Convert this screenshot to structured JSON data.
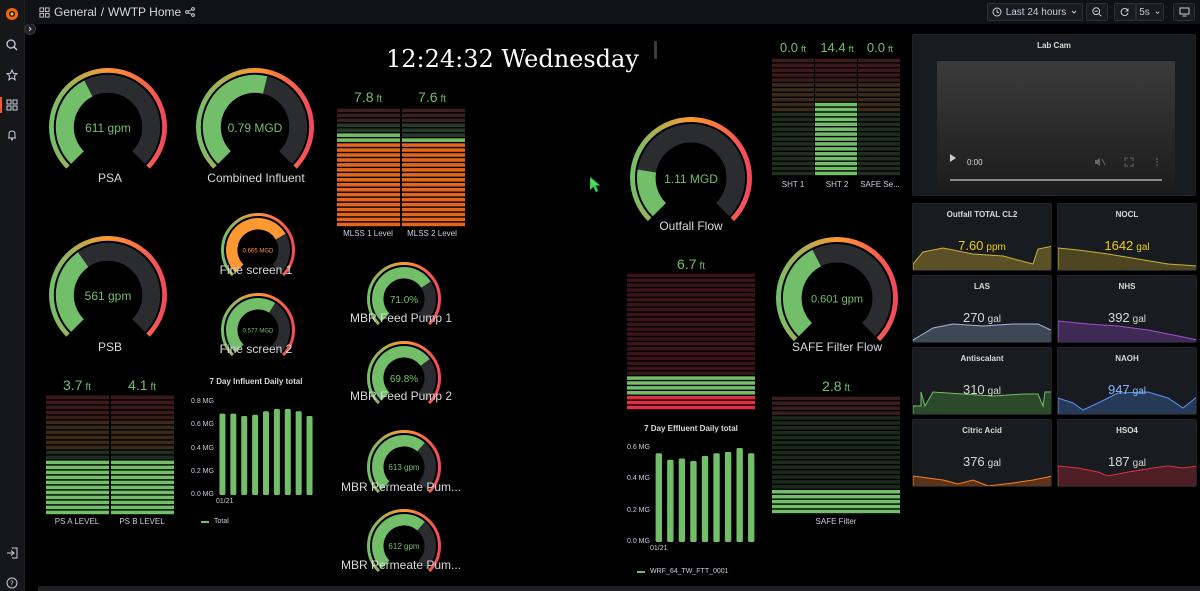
{
  "topbar": {
    "breadcrumb_folder": "General",
    "breadcrumb_sep": "/",
    "breadcrumb_title": "WWTP Home",
    "time_range": "Last 24 hours",
    "refresh_interval": "5s"
  },
  "sidebar": {
    "icons": [
      "grafana-logo-icon",
      "search-icon",
      "star-icon",
      "dashboards-icon",
      "bell-icon",
      "sign-in-icon",
      "help-icon"
    ]
  },
  "clock": {
    "text": "12:24:32 Wednesday"
  },
  "gauges": {
    "psa": {
      "value": "611 gpm",
      "label": "PSA",
      "fraction": 0.4
    },
    "combined": {
      "value": "0.79 MGD",
      "label": "Combined Influent",
      "fraction": 0.55
    },
    "psb": {
      "value": "561 gpm",
      "label": "PSB",
      "fraction": 0.37
    },
    "fine1": {
      "value": "0.665 MGD",
      "label": "Fine screen 1",
      "fraction": 0.72
    },
    "fine2": {
      "value": "0.577 MGD",
      "label": "Fine screen 2",
      "fraction": 0.62
    },
    "mbr_feed1": {
      "value": "71.0%",
      "label": "MBR Feed Pump 1",
      "fraction": 0.71
    },
    "mbr_feed2": {
      "value": "69.8%",
      "label": "MBR Feed Pump 2",
      "fraction": 0.698
    },
    "mbr_perm1": {
      "value": "613 gpm",
      "label": "MBR Permeate Pum...",
      "fraction": 0.65
    },
    "mbr_perm2": {
      "value": "612 gpm",
      "label": "MBR Permeate Pum...",
      "fraction": 0.65
    },
    "outfall": {
      "value": "1.11 MGD",
      "label": "Outfall Flow",
      "fraction": 0.2
    },
    "safe_filter_flow": {
      "value": "0.601 gpm",
      "label": "SAFE Filter Flow",
      "fraction": 0.4
    }
  },
  "levels": {
    "ps_a": {
      "value": "3.7",
      "unit": "ft",
      "label": "PS A LEVEL",
      "fraction": 0.45
    },
    "ps_b": {
      "value": "4.1",
      "unit": "ft",
      "label": "PS B LEVEL",
      "fraction": 0.47
    },
    "mlss1": {
      "value": "7.8",
      "unit": "ft",
      "label": "MLSS 1 Level",
      "fraction": 0.78
    },
    "mlss2": {
      "value": "7.6",
      "unit": "ft",
      "label": "MLSS 2 Level",
      "fraction": 0.76
    },
    "sht1": {
      "value": "0.0",
      "unit": "ft",
      "label": "SHT 1",
      "fraction": 0.0
    },
    "sht2": {
      "value": "14.4",
      "unit": "ft",
      "label": "SHT 2",
      "fraction": 0.62
    },
    "safe_se": {
      "value": "0.0",
      "unit": "ft",
      "label": "SAFE Se...",
      "fraction": 0.0
    },
    "wrf_level": {
      "value": "6.7",
      "unit": "ft",
      "fraction": 0.25
    },
    "safe_filter": {
      "value": "2.8",
      "unit": "ft",
      "label": "SAFE Filter",
      "fraction": 0.2
    }
  },
  "influent_chart": {
    "title": "7 Day Influent Daily total",
    "y_ticks": [
      "0.8 MG",
      "0.6 MG",
      "0.4 MG",
      "0.2 MG",
      "0.0 MG"
    ],
    "x_tick": "01/21",
    "legend": "Total",
    "ylim": [
      0,
      0.8
    ],
    "values": [
      0.7,
      0.7,
      0.68,
      0.69,
      0.72,
      0.74,
      0.74,
      0.72,
      0.68
    ]
  },
  "effluent_chart": {
    "title": "7 Day Effluent Daily total",
    "y_ticks": [
      "0.6 MG",
      "0.4 MG",
      "0.2 MG",
      "0.0 MG"
    ],
    "x_tick": "01/21",
    "legend": "WRF_64_TW_FTT_0001",
    "ylim": [
      0,
      0.72
    ],
    "values": [
      0.68,
      0.63,
      0.64,
      0.62,
      0.66,
      0.68,
      0.69,
      0.72,
      0.68
    ]
  },
  "video": {
    "title": "Lab Cam",
    "time": "0:00"
  },
  "stats": [
    {
      "title": "Outfall TOTAL CL2",
      "num": "7.60",
      "unit": "ppm",
      "color": "#f2cc0c",
      "fill": "#5c5026"
    },
    {
      "title": "NOCL",
      "num": "1642",
      "unit": "gal",
      "color": "#f2cc0c",
      "fill": "#4e4522"
    },
    {
      "title": "LAS",
      "num": "270",
      "unit": "gal",
      "color": "#d8d9da",
      "fill": "#3d4756"
    },
    {
      "title": "NHS",
      "num": "392",
      "unit": "gal",
      "color": "#d8d9da",
      "fill": "#3e2a55"
    },
    {
      "title": "Antiscalant",
      "num": "310",
      "unit": "gal",
      "color": "#d8d9da",
      "fill": "#2b4a2b"
    },
    {
      "title": "NAOH",
      "num": "947",
      "unit": "gal",
      "color": "#8ab8ff",
      "fill": "#263a58"
    },
    {
      "title": "Citric Acid",
      "num": "376",
      "unit": "gal",
      "color": "#d8d9da",
      "fill": "#5a3318"
    },
    {
      "title": "HSO4",
      "num": "187",
      "unit": "gal",
      "color": "#d8d9da",
      "fill": "#4d1f24"
    }
  ]
}
